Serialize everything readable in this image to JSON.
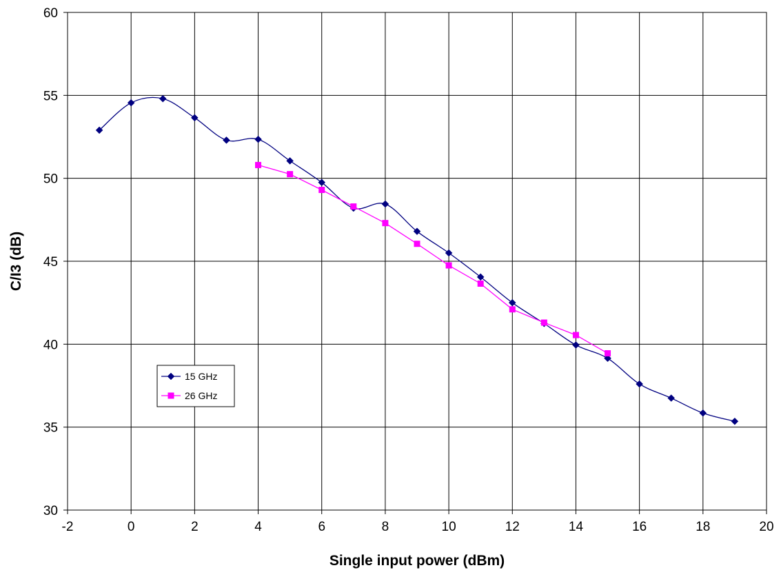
{
  "chart_data": {
    "type": "line",
    "title": "",
    "xlabel": "Single input power (dBm)",
    "ylabel": "C/I3 (dB)",
    "xlim": [
      -2,
      20
    ],
    "ylim": [
      30,
      60
    ],
    "xticks": [
      -2,
      0,
      2,
      4,
      6,
      8,
      10,
      12,
      14,
      16,
      18,
      20
    ],
    "yticks": [
      30,
      35,
      40,
      45,
      50,
      55,
      60
    ],
    "grid": true,
    "legend_position": "lower-left",
    "series": [
      {
        "name": "15 GHz",
        "color": "#000080",
        "marker": "diamond",
        "smooth": true,
        "x": [
          -1,
          0,
          1,
          2,
          3,
          4,
          5,
          6,
          7,
          8,
          9,
          10,
          11,
          12,
          13,
          14,
          15,
          16,
          17,
          18,
          19
        ],
        "y": [
          52.9,
          54.55,
          54.8,
          53.65,
          52.3,
          52.35,
          51.05,
          49.75,
          48.2,
          48.45,
          46.8,
          45.5,
          44.05,
          42.5,
          41.25,
          39.95,
          39.15,
          37.6,
          36.75,
          35.85,
          35.35
        ]
      },
      {
        "name": "26 GHz",
        "color": "#ff00ff",
        "marker": "square",
        "smooth": false,
        "x": [
          4,
          5,
          6,
          7,
          8,
          9,
          10,
          11,
          12,
          13,
          14,
          15
        ],
        "y": [
          50.8,
          50.25,
          49.3,
          48.3,
          47.3,
          46.05,
          44.75,
          43.65,
          42.1,
          41.3,
          40.55,
          39.45
        ]
      }
    ]
  }
}
